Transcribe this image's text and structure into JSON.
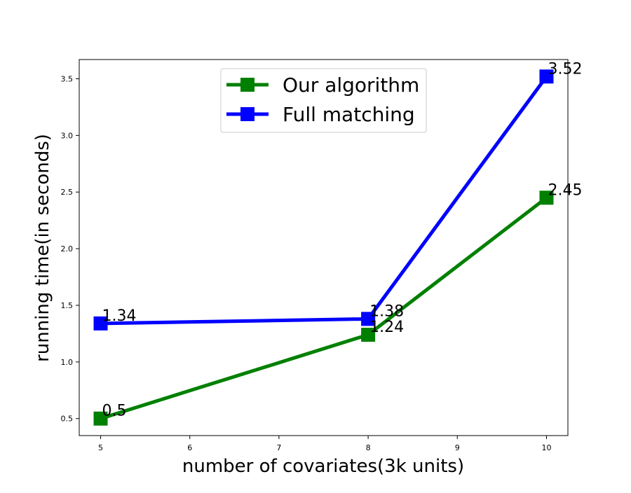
{
  "chart_data": {
    "type": "line",
    "title": "",
    "xlabel": "number of covariates(3k units)",
    "ylabel": "running time(in seconds)",
    "x": [
      5,
      8,
      10
    ],
    "xlim": [
      4.76,
      10.24
    ],
    "ylim": [
      0.35,
      3.67
    ],
    "xticks": [
      5,
      6,
      7,
      8,
      9,
      10
    ],
    "yticks": [
      0.5,
      1.0,
      1.5,
      2.0,
      2.5,
      3.0,
      3.5
    ],
    "xtick_labels": [
      "5",
      "6",
      "7",
      "8",
      "9",
      "10"
    ],
    "ytick_labels": [
      "0.5",
      "1.0",
      "1.5",
      "2.0",
      "2.5",
      "3.0",
      "3.5"
    ],
    "grid": false,
    "legend_position": "top-center",
    "series": [
      {
        "name": "Our algorithm",
        "color": "#008000",
        "marker": "square",
        "values": [
          0.5,
          1.24,
          2.45
        ],
        "labels": [
          "0.5",
          "1.24",
          "2.45"
        ]
      },
      {
        "name": "Full matching",
        "color": "#0000ff",
        "marker": "square",
        "values": [
          1.34,
          1.38,
          3.52
        ],
        "labels": [
          "1.34",
          "1.38",
          "3.52"
        ]
      }
    ]
  }
}
